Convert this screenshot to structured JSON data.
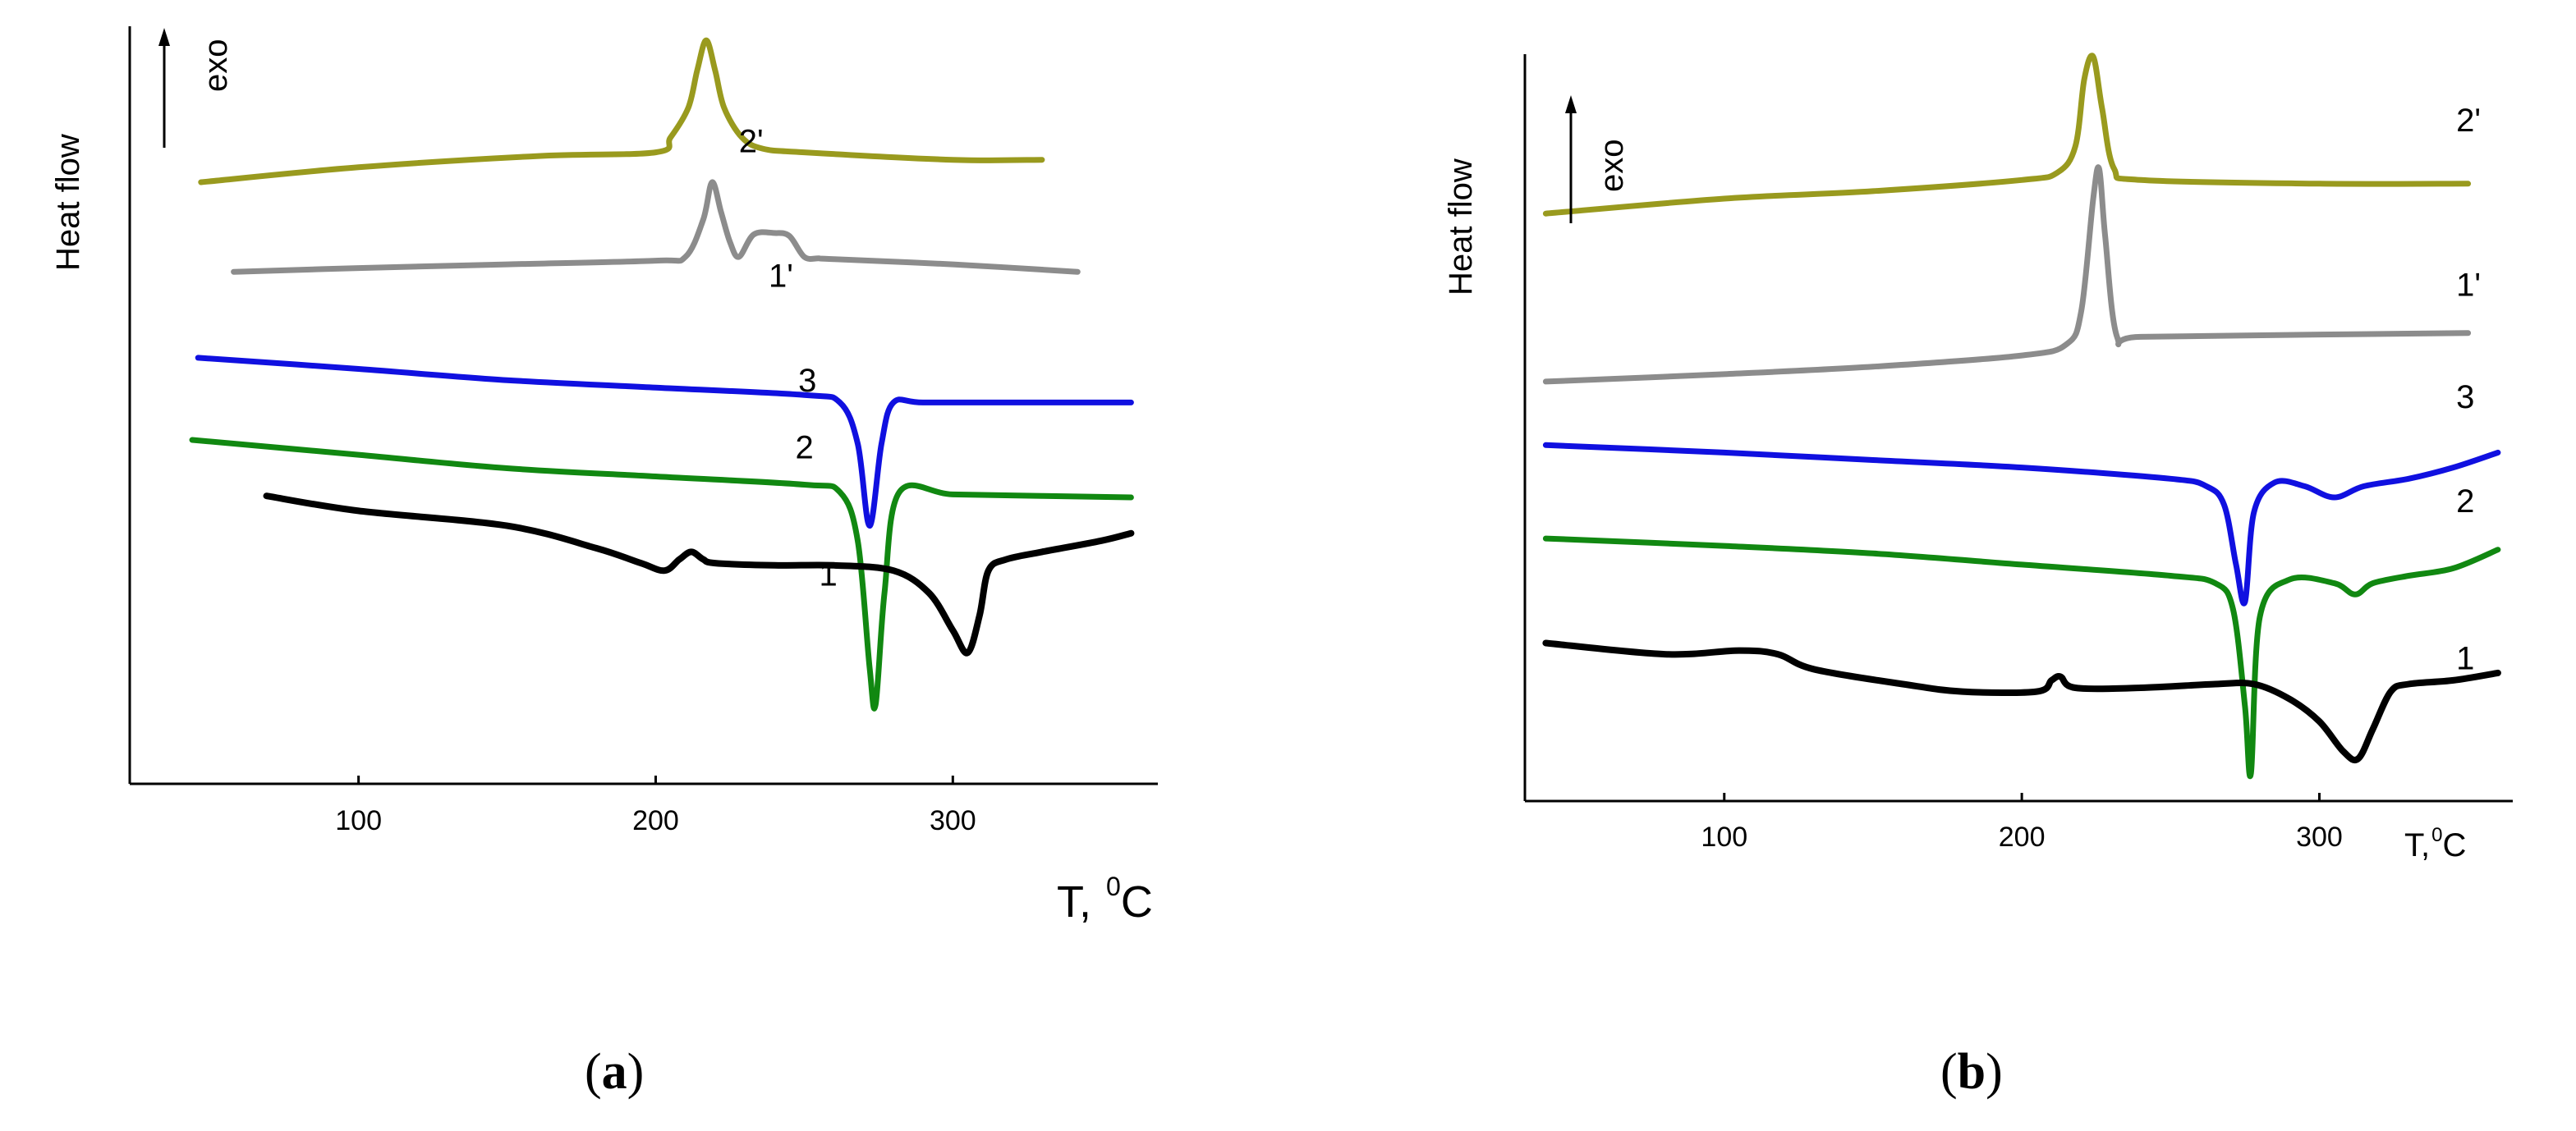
{
  "figure": {
    "panels": [
      {
        "caption_open": "(",
        "caption_letter": "a",
        "caption_close": ")"
      },
      {
        "caption_open": "(",
        "caption_letter": "b",
        "caption_close": ")"
      }
    ]
  },
  "chart_data": [
    {
      "type": "line",
      "panel": "a",
      "title": "",
      "xlabel": "T,  0C",
      "xlabel_main": "T,",
      "xlabel_sup": "0",
      "xlabel_unit": "C",
      "ylabel": "Heat flow",
      "annotation": "exo",
      "x_ticks": [
        100,
        200,
        300
      ],
      "xlim": [
        23,
        369
      ],
      "ylim": [
        0,
        100
      ],
      "grid": false,
      "series": [
        {
          "name": "2'",
          "label_at": [
            228,
            16
          ],
          "x": [
            47,
            100,
            160,
            200,
            205,
            211,
            214,
            217,
            220,
            223,
            229,
            236,
            250,
            300,
            330
          ],
          "y": [
            20,
            18,
            16.5,
            16,
            14,
            10,
            5,
            1,
            5,
            10,
            14,
            15.5,
            16,
            17,
            17
          ]
        },
        {
          "name": "1'",
          "label_at": [
            238,
            34
          ],
          "x": [
            58,
            100,
            150,
            200,
            210,
            216,
            219,
            222,
            225,
            228,
            233,
            240,
            245,
            250,
            255,
            260,
            300,
            342
          ],
          "y": [
            32,
            31.5,
            31,
            30.5,
            30,
            25,
            20,
            24,
            28,
            30,
            27,
            26.8,
            27.2,
            30,
            30.2,
            30.3,
            31,
            32
          ]
        },
        {
          "name": "3",
          "label_at": [
            248,
            48
          ],
          "x": [
            46,
            100,
            150,
            200,
            250,
            262,
            268,
            272,
            276,
            280,
            290,
            320,
            360
          ],
          "y": [
            43.5,
            45,
            46.5,
            47.5,
            48.5,
            49.5,
            55,
            66,
            55,
            49.5,
            49.5,
            49.5,
            49.5
          ]
        },
        {
          "name": "2",
          "label_at": [
            247,
            57
          ],
          "x": [
            44,
            100,
            150,
            200,
            250,
            262,
            268,
            272,
            274,
            277,
            282,
            300,
            330,
            360
          ],
          "y": [
            54.5,
            56.5,
            58.3,
            59.4,
            60.5,
            61.5,
            68,
            85,
            90,
            75,
            61.5,
            61.8,
            62,
            62.2
          ]
        },
        {
          "name": "1",
          "label_at": [
            255,
            74
          ],
          "x": [
            69,
            100,
            150,
            180,
            195,
            203,
            208,
            212,
            216,
            220,
            240,
            260,
            280,
            292,
            300,
            305,
            309,
            312,
            318,
            330,
            350,
            360
          ],
          "y": [
            62,
            64,
            66,
            69,
            71,
            72,
            70.5,
            69.5,
            70.5,
            71,
            71.3,
            71.3,
            72,
            75,
            80,
            83,
            78,
            72,
            70.5,
            69.5,
            68,
            67
          ]
        }
      ]
    },
    {
      "type": "line",
      "panel": "b",
      "title": "",
      "xlabel": "T,0C",
      "xlabel_main": "T,",
      "xlabel_sup": "0",
      "xlabel_unit": "C",
      "ylabel": "Heat flow",
      "annotation": "exo",
      "x_ticks": [
        100,
        200,
        300
      ],
      "xlim": [
        33,
        365
      ],
      "ylim": [
        0,
        100
      ],
      "grid": false,
      "series": [
        {
          "name": "2'",
          "label_at": [
            346,
            11
          ],
          "x": [
            40,
            100,
            150,
            200,
            212,
            218,
            221,
            224,
            227,
            231,
            240,
            300,
            350
          ],
          "y": [
            22,
            20,
            19,
            17.5,
            16.5,
            13,
            4,
            1,
            8,
            16,
            17.5,
            18,
            18
          ]
        },
        {
          "name": "1'",
          "label_at": [
            346,
            33
          ],
          "x": [
            40,
            100,
            150,
            200,
            215,
            220,
            224,
            226,
            228,
            232,
            240,
            300,
            350
          ],
          "y": [
            44.5,
            43.5,
            42.5,
            41,
            39.5,
            35,
            20,
            16,
            25,
            38.5,
            38.5,
            38.2,
            38
          ]
        },
        {
          "name": "3",
          "label_at": [
            346,
            48
          ],
          "x": [
            40,
            100,
            150,
            200,
            250,
            262,
            268,
            272,
            275,
            278,
            285,
            295,
            305,
            315,
            330,
            345,
            360
          ],
          "y": [
            53,
            54,
            55,
            56,
            57.5,
            58.5,
            61,
            69,
            74,
            62,
            58,
            58.5,
            60,
            58.5,
            57.5,
            56,
            54
          ]
        },
        {
          "name": "2",
          "label_at": [
            346,
            62
          ],
          "x": [
            40,
            100,
            150,
            200,
            250,
            265,
            271,
            275,
            277,
            280,
            290,
            305,
            312,
            318,
            330,
            345,
            360
          ],
          "y": [
            65.5,
            66.5,
            67.5,
            69,
            70.5,
            71.5,
            75,
            88,
            97,
            76,
            71,
            71.5,
            73,
            71.5,
            70.5,
            69.5,
            67
          ]
        },
        {
          "name": "1",
          "label_at": [
            346,
            83
          ],
          "x": [
            40,
            80,
            105,
            118,
            130,
            160,
            180,
            205,
            210,
            213,
            218,
            240,
            265,
            278,
            290,
            300,
            308,
            313,
            318,
            324,
            330,
            345,
            360
          ],
          "y": [
            79.5,
            81,
            80.5,
            81,
            83,
            85,
            86,
            86,
            84.5,
            84,
            85.5,
            85.5,
            85,
            85,
            87,
            90,
            94,
            95,
            91,
            86,
            85,
            84.5,
            83.5
          ]
        }
      ]
    }
  ]
}
